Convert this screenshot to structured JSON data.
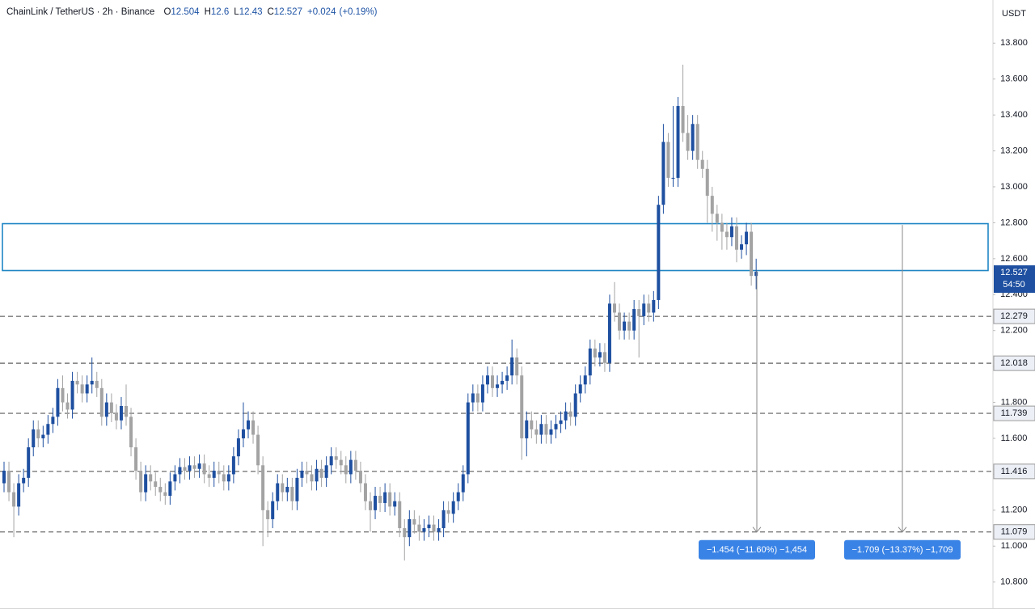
{
  "chart_data": {
    "type": "candlestick",
    "symbol": "ChainLink / TetherUS · 2h · Binance",
    "ohlc_keys": [
      "O",
      "H",
      "L",
      "C"
    ],
    "change": {
      "value": 0.024,
      "label": "+0.024"
    },
    "change_pct": {
      "value": 0.19,
      "label": "(+0.19%)"
    },
    "currency": "USDT",
    "countdown": "54:50",
    "up_color": "#1e4fa0",
    "down_color": "#a3a3a3",
    "ylim": [
      10.65,
      14.04
    ],
    "yticks": [
      {
        "value": 10.8,
        "label": "10.800"
      },
      {
        "value": 11.0,
        "label": "11.000"
      },
      {
        "value": 11.2,
        "label": "11.200"
      },
      {
        "value": 11.4,
        "label": "11.400"
      },
      {
        "value": 11.6,
        "label": "11.600"
      },
      {
        "value": 11.8,
        "label": "11.800"
      },
      {
        "value": 12.0,
        "label": "12.000"
      },
      {
        "value": 12.2,
        "label": "12.200"
      },
      {
        "value": 12.4,
        "label": "12.400"
      },
      {
        "value": 12.6,
        "label": "12.600"
      },
      {
        "value": 12.8,
        "label": "12.800"
      },
      {
        "value": 13.0,
        "label": "13.000"
      },
      {
        "value": 13.2,
        "label": "13.200"
      },
      {
        "value": 13.4,
        "label": "13.400"
      },
      {
        "value": 13.6,
        "label": "13.600"
      },
      {
        "value": 13.8,
        "label": "13.800"
      }
    ],
    "grid": false,
    "levels": [
      12.279,
      12.018,
      11.739,
      11.416,
      11.079
    ],
    "zone": [
      12.534,
      12.795
    ],
    "measures": [
      {
        "from": 12.533,
        "to": 11.079,
        "label": "−1.454 (−11.60%) −1,454"
      },
      {
        "from": 12.788,
        "to": 11.079,
        "label": "−1.709 (−13.37%) −1,709"
      }
    ],
    "open": [
      11.35,
      11.42,
      11.3,
      11.22,
      11.35,
      11.38,
      11.55,
      11.65,
      11.6,
      11.62,
      11.68,
      11.72,
      11.88,
      11.8,
      11.76,
      11.92,
      11.9,
      11.85,
      11.9,
      11.92,
      11.88,
      11.72,
      11.8,
      11.74,
      11.7,
      11.78,
      11.72,
      11.55,
      11.42,
      11.3,
      11.4,
      11.36,
      11.33,
      11.3,
      11.28,
      11.36,
      11.4,
      11.44,
      11.42,
      11.45,
      11.43,
      11.46,
      11.4,
      11.38,
      11.42,
      11.4,
      11.36,
      11.4,
      11.5,
      11.6,
      11.65,
      11.7,
      11.62,
      11.45,
      11.2,
      11.15,
      11.25,
      11.35,
      11.3,
      11.33,
      11.25,
      11.38,
      11.42,
      11.4,
      11.36,
      11.43,
      11.38,
      11.45,
      11.5,
      11.48,
      11.45,
      11.4,
      11.48,
      11.42,
      11.35,
      11.25,
      11.2,
      11.28,
      11.24,
      11.3,
      11.22,
      11.25,
      11.1,
      11.05,
      11.15,
      11.12,
      11.08,
      11.1,
      11.12,
      11.08,
      11.1,
      11.2,
      11.18,
      11.25,
      11.3,
      11.4,
      11.8,
      11.85,
      11.8,
      11.9,
      11.95,
      11.88,
      11.9,
      11.92,
      11.95,
      12.05,
      11.95,
      11.6,
      11.7,
      11.65,
      11.62,
      11.68,
      11.62,
      11.65,
      11.68,
      11.7,
      11.75,
      11.72,
      11.85,
      11.9,
      11.95,
      12.1,
      12.05,
      12.08,
      12.02,
      12.35,
      12.3,
      12.2,
      12.25,
      12.2,
      12.32,
      12.28,
      12.35,
      12.3,
      12.37,
      12.9,
      13.25,
      13.05,
      13.05,
      13.45,
      13.3,
      13.2,
      13.35,
      13.15,
      13.1,
      12.95,
      12.85,
      12.8,
      12.75,
      12.72,
      12.78,
      12.65,
      12.68,
      12.75,
      12.504
    ],
    "high": [
      11.47,
      11.47,
      11.35,
      11.4,
      11.43,
      11.6,
      11.7,
      11.7,
      11.67,
      11.73,
      11.77,
      11.93,
      11.95,
      11.85,
      11.97,
      11.97,
      11.95,
      11.95,
      12.05,
      11.97,
      11.93,
      11.85,
      11.85,
      11.79,
      11.83,
      11.9,
      11.77,
      11.6,
      11.47,
      11.45,
      11.45,
      11.41,
      11.38,
      11.35,
      11.41,
      11.45,
      11.49,
      11.49,
      11.5,
      11.5,
      11.51,
      11.51,
      11.45,
      11.47,
      11.47,
      11.45,
      11.45,
      11.55,
      11.65,
      11.8,
      11.75,
      11.75,
      11.67,
      11.5,
      11.25,
      11.3,
      11.4,
      11.4,
      11.38,
      11.38,
      11.43,
      11.47,
      11.47,
      11.45,
      11.48,
      11.48,
      11.5,
      11.55,
      11.55,
      11.53,
      11.5,
      11.53,
      11.53,
      11.47,
      11.4,
      11.3,
      11.33,
      11.33,
      11.35,
      11.35,
      11.3,
      11.3,
      11.15,
      11.2,
      11.2,
      11.17,
      11.15,
      11.17,
      11.17,
      11.15,
      11.25,
      11.25,
      11.3,
      11.35,
      11.45,
      11.85,
      11.9,
      11.9,
      11.95,
      12.0,
      12.0,
      11.95,
      11.97,
      12.0,
      12.15,
      12.1,
      12.0,
      11.75,
      11.75,
      11.7,
      11.73,
      11.73,
      11.7,
      11.73,
      11.75,
      11.8,
      11.8,
      11.9,
      11.95,
      12.0,
      12.15,
      12.15,
      12.13,
      12.13,
      12.4,
      12.47,
      12.35,
      12.3,
      12.3,
      12.37,
      12.37,
      12.4,
      12.4,
      12.42,
      12.95,
      13.35,
      13.3,
      13.45,
      13.5,
      13.68,
      13.4,
      13.4,
      13.4,
      13.2,
      13.15,
      13.0,
      12.9,
      12.85,
      12.8,
      12.83,
      12.83,
      12.73,
      12.8,
      12.8,
      12.6
    ],
    "low": [
      11.3,
      11.25,
      11.05,
      11.17,
      11.3,
      11.33,
      11.5,
      11.55,
      11.55,
      11.57,
      11.63,
      11.67,
      11.75,
      11.71,
      11.71,
      11.85,
      11.8,
      11.8,
      11.85,
      11.83,
      11.67,
      11.67,
      11.69,
      11.65,
      11.65,
      11.67,
      11.5,
      11.37,
      11.25,
      11.25,
      11.31,
      11.28,
      11.25,
      11.23,
      11.23,
      11.31,
      11.35,
      11.37,
      11.37,
      11.38,
      11.38,
      11.35,
      11.33,
      11.33,
      11.35,
      11.31,
      11.31,
      11.35,
      11.45,
      11.55,
      11.6,
      11.57,
      11.4,
      11.0,
      11.05,
      11.1,
      11.2,
      11.25,
      11.25,
      11.2,
      11.2,
      11.33,
      11.35,
      11.31,
      11.31,
      11.33,
      11.33,
      11.4,
      11.43,
      11.4,
      11.35,
      11.35,
      11.37,
      11.3,
      11.2,
      11.08,
      11.15,
      11.19,
      11.19,
      11.17,
      11.17,
      11.05,
      10.92,
      11.0,
      11.07,
      11.03,
      11.03,
      11.05,
      11.03,
      11.03,
      11.05,
      11.13,
      11.13,
      11.2,
      11.25,
      11.35,
      11.75,
      11.75,
      11.75,
      11.85,
      11.83,
      11.83,
      11.85,
      11.87,
      11.9,
      11.9,
      11.48,
      11.5,
      11.6,
      11.57,
      11.57,
      11.57,
      11.57,
      11.6,
      11.63,
      11.65,
      11.67,
      11.67,
      11.8,
      11.85,
      11.9,
      12.0,
      12.0,
      11.97,
      11.97,
      12.25,
      12.15,
      12.15,
      12.15,
      12.15,
      12.05,
      12.23,
      12.25,
      12.25,
      12.32,
      12.85,
      13.0,
      13.0,
      13.0,
      13.25,
      13.15,
      13.15,
      13.1,
      13.05,
      12.8,
      12.75,
      12.7,
      12.65,
      12.65,
      12.67,
      12.58,
      12.6,
      12.62,
      12.45,
      12.43
    ],
    "close": [
      11.42,
      11.3,
      11.22,
      11.35,
      11.38,
      11.55,
      11.65,
      11.6,
      11.62,
      11.68,
      11.72,
      11.88,
      11.8,
      11.76,
      11.92,
      11.9,
      11.85,
      11.9,
      11.92,
      11.88,
      11.72,
      11.8,
      11.74,
      11.7,
      11.78,
      11.72,
      11.55,
      11.42,
      11.3,
      11.4,
      11.36,
      11.33,
      11.3,
      11.28,
      11.36,
      11.4,
      11.44,
      11.42,
      11.45,
      11.43,
      11.46,
      11.4,
      11.38,
      11.42,
      11.4,
      11.36,
      11.4,
      11.5,
      11.6,
      11.65,
      11.7,
      11.62,
      11.45,
      11.2,
      11.15,
      11.25,
      11.35,
      11.3,
      11.33,
      11.25,
      11.38,
      11.42,
      11.4,
      11.36,
      11.43,
      11.38,
      11.45,
      11.5,
      11.48,
      11.45,
      11.4,
      11.48,
      11.42,
      11.35,
      11.25,
      11.2,
      11.28,
      11.24,
      11.3,
      11.22,
      11.25,
      11.1,
      11.05,
      11.15,
      11.12,
      11.08,
      11.1,
      11.12,
      11.08,
      11.1,
      11.2,
      11.18,
      11.25,
      11.3,
      11.4,
      11.8,
      11.85,
      11.8,
      11.9,
      11.95,
      11.88,
      11.9,
      11.92,
      11.95,
      12.05,
      11.95,
      11.6,
      11.7,
      11.65,
      11.62,
      11.68,
      11.62,
      11.65,
      11.68,
      11.7,
      11.75,
      11.72,
      11.85,
      11.9,
      11.95,
      12.1,
      12.05,
      12.08,
      12.02,
      12.35,
      12.3,
      12.2,
      12.25,
      12.2,
      12.32,
      12.28,
      12.35,
      12.3,
      12.37,
      12.9,
      13.25,
      13.05,
      13.05,
      13.45,
      13.3,
      13.2,
      13.35,
      13.15,
      13.1,
      12.95,
      12.85,
      12.8,
      12.75,
      12.72,
      12.78,
      12.65,
      12.68,
      12.75,
      12.504,
      12.527
    ]
  }
}
